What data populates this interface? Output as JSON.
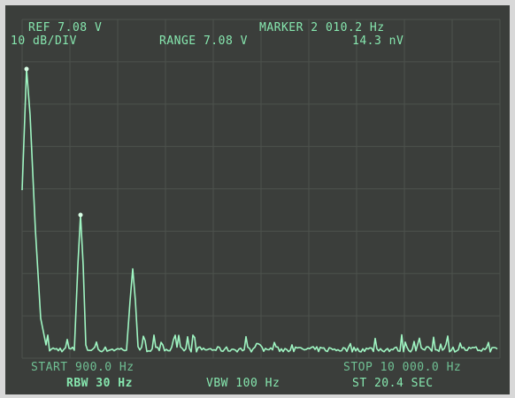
{
  "screen": {
    "top_left": [
      "REF 7.08 V",
      "10 dB/DIV"
    ],
    "top_center": "RANGE 7.08 V",
    "marker": [
      "MARKER 2 010.2 Hz",
      "14.3 nV"
    ],
    "bottom": {
      "start": "START 900.0 Hz",
      "stop": "STOP 10 000.0 Hz",
      "rbw": "RBW 30 Hz",
      "vbw": "VBW 100 Hz",
      "sweep_time": "ST 20.4 SEC"
    }
  }
}
